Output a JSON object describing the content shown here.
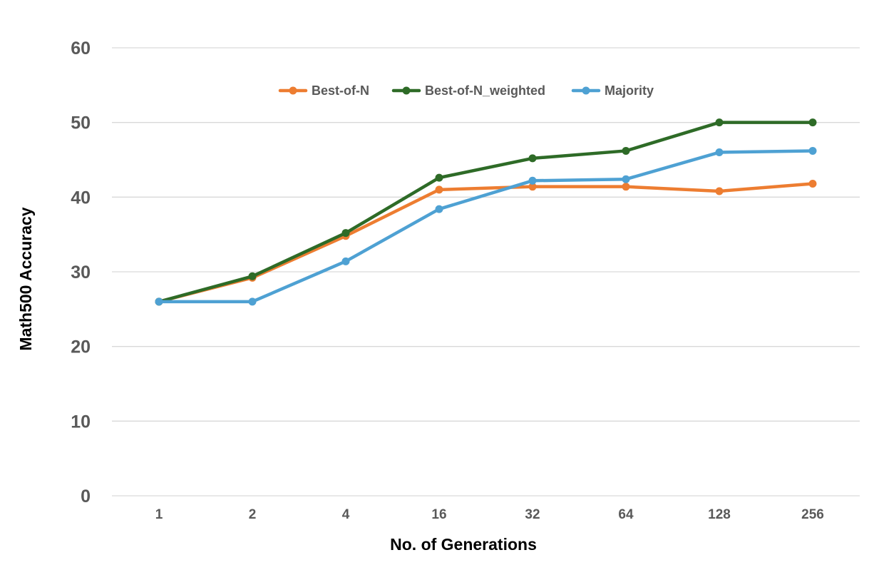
{
  "chart_data": {
    "type": "line",
    "title": "",
    "xlabel": "No. of Generations",
    "ylabel": "Math500 Accuracy",
    "categories": [
      "1",
      "2",
      "4",
      "16",
      "32",
      "64",
      "128",
      "256"
    ],
    "ylim": [
      0,
      60
    ],
    "yticks": [
      "0",
      "10",
      "20",
      "30",
      "40",
      "50",
      "60"
    ],
    "grid": true,
    "legend_position": "top",
    "series": [
      {
        "name": "Best-of-N",
        "color": "#ed7d31",
        "values": [
          26.0,
          29.2,
          34.8,
          41.0,
          41.4,
          41.4,
          40.8,
          41.8
        ]
      },
      {
        "name": "Best-of-N_weighted",
        "color": "#2e6b27",
        "values": [
          26.0,
          29.4,
          35.2,
          42.6,
          45.2,
          46.2,
          50.0,
          50.0
        ]
      },
      {
        "name": "Majority",
        "color": "#4ea1d3",
        "values": [
          26.0,
          26.0,
          31.4,
          38.4,
          42.2,
          42.4,
          46.0,
          46.2
        ]
      }
    ]
  }
}
